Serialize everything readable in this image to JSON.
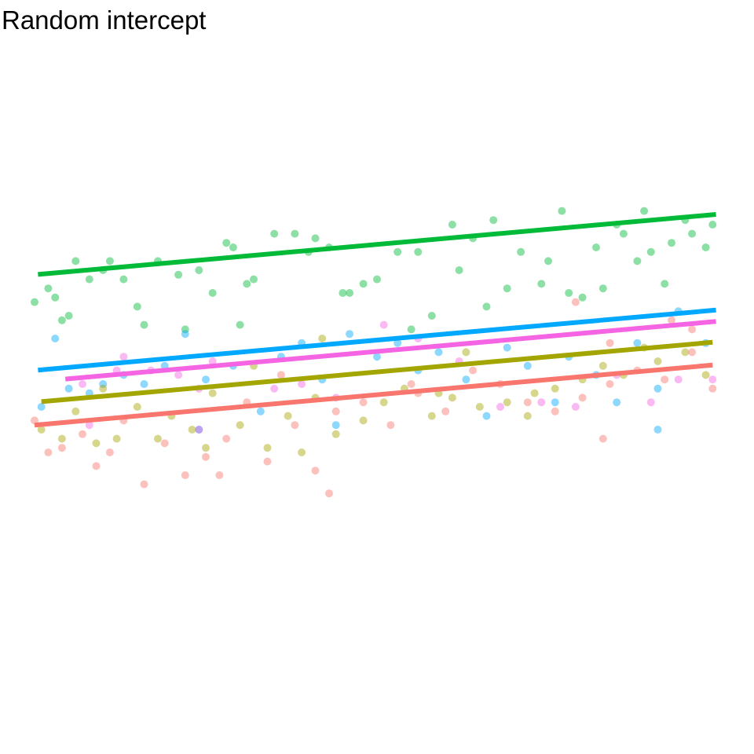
{
  "chart_data": {
    "type": "scatter",
    "title": "Random intercept",
    "xlabel": "",
    "ylabel": "",
    "xlim": [
      0,
      10
    ],
    "ylim": [
      0,
      10
    ],
    "axes_visible": false,
    "grid": false,
    "legend": "none",
    "slope": 0.133,
    "groups": [
      {
        "color": "#00BA38",
        "x_range": [
          0.05,
          9.95
        ],
        "intercept": 6.9,
        "points": [
          [
            0.0,
            6.3
          ],
          [
            0.2,
            6.6
          ],
          [
            0.3,
            6.4
          ],
          [
            0.4,
            5.9
          ],
          [
            0.5,
            6.0
          ],
          [
            0.6,
            7.2
          ],
          [
            0.8,
            6.8
          ],
          [
            1.1,
            7.2
          ],
          [
            1.3,
            6.8
          ],
          [
            1.5,
            6.2
          ],
          [
            1.6,
            5.8
          ],
          [
            1.8,
            7.2
          ],
          [
            2.1,
            6.9
          ],
          [
            2.4,
            7.0
          ],
          [
            2.8,
            7.6
          ],
          [
            2.9,
            7.5
          ],
          [
            3.1,
            6.7
          ],
          [
            3.2,
            6.8
          ],
          [
            3.5,
            7.8
          ],
          [
            3.8,
            7.8
          ],
          [
            4.0,
            7.4
          ],
          [
            4.1,
            7.7
          ],
          [
            4.3,
            7.5
          ],
          [
            4.5,
            6.5
          ],
          [
            4.8,
            6.7
          ],
          [
            5.0,
            6.8
          ],
          [
            5.3,
            7.4
          ],
          [
            5.6,
            7.4
          ],
          [
            5.8,
            6.0
          ],
          [
            6.1,
            8.0
          ],
          [
            6.4,
            7.7
          ],
          [
            6.7,
            8.1
          ],
          [
            6.9,
            6.6
          ],
          [
            7.1,
            7.4
          ],
          [
            7.5,
            7.2
          ],
          [
            7.8,
            6.5
          ],
          [
            8.0,
            6.4
          ],
          [
            8.3,
            6.6
          ],
          [
            8.6,
            7.8
          ],
          [
            8.9,
            8.3
          ],
          [
            9.0,
            7.4
          ],
          [
            9.3,
            7.6
          ],
          [
            9.5,
            8.1
          ],
          [
            9.8,
            7.5
          ],
          [
            9.9,
            8.0
          ],
          [
            2.2,
            5.7
          ],
          [
            3.0,
            5.8
          ],
          [
            5.5,
            5.7
          ],
          [
            6.6,
            6.2
          ],
          [
            7.4,
            6.7
          ],
          [
            8.2,
            7.5
          ],
          [
            8.8,
            7.2
          ],
          [
            9.6,
            7.8
          ],
          [
            1.0,
            7.0
          ],
          [
            2.6,
            6.5
          ],
          [
            4.6,
            6.5
          ],
          [
            6.2,
            7.0
          ],
          [
            7.7,
            8.3
          ],
          [
            8.5,
            8.0
          ],
          [
            9.2,
            6.7
          ]
        ]
      },
      {
        "color": "#00A9FF",
        "x_range": [
          0.05,
          9.95
        ],
        "intercept": 4.8,
        "points": [
          [
            0.1,
            4.0
          ],
          [
            0.3,
            5.5
          ],
          [
            0.5,
            4.4
          ],
          [
            0.8,
            4.3
          ],
          [
            1.0,
            4.5
          ],
          [
            1.3,
            4.7
          ],
          [
            1.6,
            4.5
          ],
          [
            1.9,
            4.9
          ],
          [
            2.2,
            5.6
          ],
          [
            2.5,
            4.6
          ],
          [
            2.9,
            4.9
          ],
          [
            3.3,
            3.9
          ],
          [
            3.6,
            5.1
          ],
          [
            3.9,
            5.4
          ],
          [
            4.2,
            4.6
          ],
          [
            4.6,
            5.6
          ],
          [
            5.0,
            5.1
          ],
          [
            5.3,
            5.4
          ],
          [
            5.6,
            4.8
          ],
          [
            5.9,
            5.2
          ],
          [
            6.3,
            4.6
          ],
          [
            6.6,
            3.8
          ],
          [
            6.9,
            5.3
          ],
          [
            7.2,
            4.9
          ],
          [
            7.6,
            4.1
          ],
          [
            7.8,
            5.1
          ],
          [
            8.2,
            4.7
          ],
          [
            8.5,
            4.1
          ],
          [
            8.8,
            5.4
          ],
          [
            9.1,
            4.4
          ],
          [
            9.4,
            6.1
          ],
          [
            9.8,
            5.4
          ],
          [
            2.4,
            3.5
          ],
          [
            4.4,
            3.6
          ],
          [
            9.1,
            3.5
          ]
        ]
      },
      {
        "color": "#F564E3",
        "x_range": [
          0.45,
          9.95
        ],
        "intercept": 4.55,
        "points": [
          [
            0.7,
            4.5
          ],
          [
            1.3,
            5.1
          ],
          [
            1.7,
            4.8
          ],
          [
            2.1,
            4.7
          ],
          [
            2.4,
            4.4
          ],
          [
            2.6,
            5.0
          ],
          [
            3.5,
            4.4
          ],
          [
            3.9,
            4.5
          ],
          [
            4.4,
            4.2
          ],
          [
            5.1,
            5.8
          ],
          [
            5.6,
            5.5
          ],
          [
            6.2,
            5.0
          ],
          [
            6.8,
            4.0
          ],
          [
            7.4,
            4.1
          ],
          [
            7.9,
            4.0
          ],
          [
            8.5,
            4.7
          ],
          [
            9.0,
            4.1
          ],
          [
            9.4,
            4.6
          ],
          [
            9.9,
            4.6
          ],
          [
            2.4,
            3.5
          ],
          [
            0.8,
            3.6
          ],
          [
            1.2,
            4.8
          ]
        ]
      },
      {
        "color": "#A3A500",
        "x_range": [
          0.1,
          9.9
        ],
        "intercept": 4.1,
        "points": [
          [
            0.1,
            3.5
          ],
          [
            0.4,
            3.3
          ],
          [
            0.6,
            3.9
          ],
          [
            0.9,
            3.2
          ],
          [
            1.2,
            3.3
          ],
          [
            1.5,
            4.0
          ],
          [
            1.8,
            3.3
          ],
          [
            2.0,
            3.8
          ],
          [
            2.3,
            3.5
          ],
          [
            2.6,
            4.3
          ],
          [
            3.0,
            3.6
          ],
          [
            3.4,
            3.1
          ],
          [
            3.7,
            3.8
          ],
          [
            4.1,
            4.2
          ],
          [
            4.4,
            3.4
          ],
          [
            4.8,
            3.7
          ],
          [
            5.1,
            4.1
          ],
          [
            5.4,
            4.4
          ],
          [
            5.8,
            3.8
          ],
          [
            6.1,
            4.2
          ],
          [
            6.5,
            4.0
          ],
          [
            6.9,
            4.1
          ],
          [
            7.3,
            4.3
          ],
          [
            7.6,
            4.4
          ],
          [
            8.0,
            4.6
          ],
          [
            8.3,
            4.9
          ],
          [
            8.6,
            4.7
          ],
          [
            9.1,
            5.0
          ],
          [
            9.5,
            5.2
          ],
          [
            9.8,
            4.7
          ],
          [
            1.0,
            4.4
          ],
          [
            3.2,
            4.9
          ],
          [
            4.2,
            5.5
          ],
          [
            5.9,
            4.3
          ],
          [
            8.9,
            5.3
          ],
          [
            6.3,
            5.2
          ],
          [
            7.2,
            3.8
          ],
          [
            2.5,
            3.1
          ],
          [
            3.9,
            3.0
          ]
        ]
      },
      {
        "color": "#F8766D",
        "x_range": [
          0.0,
          9.9
        ],
        "intercept": 3.6,
        "points": [
          [
            0.0,
            3.7
          ],
          [
            0.2,
            3.0
          ],
          [
            0.4,
            3.1
          ],
          [
            0.7,
            3.4
          ],
          [
            0.9,
            2.7
          ],
          [
            1.1,
            3.0
          ],
          [
            1.3,
            3.7
          ],
          [
            1.6,
            2.3
          ],
          [
            1.9,
            3.2
          ],
          [
            2.2,
            2.5
          ],
          [
            2.5,
            2.9
          ],
          [
            2.8,
            3.3
          ],
          [
            3.1,
            4.1
          ],
          [
            3.4,
            2.8
          ],
          [
            3.8,
            3.6
          ],
          [
            4.1,
            2.6
          ],
          [
            4.4,
            3.9
          ],
          [
            4.8,
            4.1
          ],
          [
            5.2,
            3.6
          ],
          [
            5.6,
            4.3
          ],
          [
            6.0,
            3.9
          ],
          [
            6.4,
            4.8
          ],
          [
            6.8,
            4.5
          ],
          [
            7.2,
            4.1
          ],
          [
            7.6,
            3.9
          ],
          [
            8.0,
            4.2
          ],
          [
            8.4,
            4.5
          ],
          [
            8.8,
            4.8
          ],
          [
            9.2,
            4.6
          ],
          [
            9.6,
            5.2
          ],
          [
            9.9,
            4.4
          ],
          [
            2.7,
            2.5
          ],
          [
            4.3,
            2.1
          ],
          [
            8.3,
            3.3
          ],
          [
            9.3,
            5.9
          ],
          [
            9.6,
            5.7
          ],
          [
            7.9,
            6.3
          ],
          [
            8.4,
            5.4
          ],
          [
            3.6,
            4.7
          ],
          [
            5.5,
            4.5
          ]
        ]
      }
    ]
  }
}
